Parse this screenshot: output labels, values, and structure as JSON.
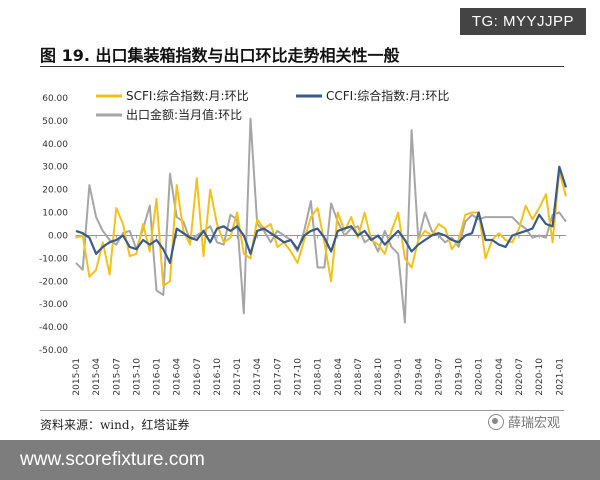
{
  "badge": {
    "text": "TG: MYYJJPP"
  },
  "figure": {
    "title": "图 19. 出口集装箱指数与出口环比走势相关性一般",
    "source": "资料来源：wind，红塔证券",
    "watermark_right": "薛瑞宏观"
  },
  "site": {
    "url": "www.scorefixture.com"
  },
  "colors": {
    "scfi": "#f2c21b",
    "ccfi": "#3a5a8c",
    "export": "#a6a6a6"
  },
  "chart_data": {
    "type": "line",
    "ylim": [
      -50,
      60
    ],
    "yticks": [
      -50,
      -40,
      -30,
      -20,
      -10,
      0,
      10,
      20,
      30,
      40,
      50,
      60
    ],
    "ytick_labels": [
      "-50.00",
      "-40.00",
      "-30.00",
      "-20.00",
      "-10.00",
      "0.00",
      "10.00",
      "20.00",
      "30.00",
      "40.00",
      "50.00",
      "60.00"
    ],
    "x": [
      "2015-01",
      "2015-02",
      "2015-03",
      "2015-04",
      "2015-05",
      "2015-06",
      "2015-07",
      "2015-08",
      "2015-09",
      "2015-10",
      "2015-11",
      "2015-12",
      "2016-01",
      "2016-02",
      "2016-03",
      "2016-04",
      "2016-05",
      "2016-06",
      "2016-07",
      "2016-08",
      "2016-09",
      "2016-10",
      "2016-11",
      "2016-12",
      "2017-01",
      "2017-02",
      "2017-03",
      "2017-04",
      "2017-05",
      "2017-06",
      "2017-07",
      "2017-08",
      "2017-09",
      "2017-10",
      "2017-11",
      "2017-12",
      "2018-01",
      "2018-02",
      "2018-03",
      "2018-04",
      "2018-05",
      "2018-06",
      "2018-07",
      "2018-08",
      "2018-09",
      "2018-10",
      "2018-11",
      "2018-12",
      "2019-01",
      "2019-02",
      "2019-03",
      "2019-04",
      "2019-05",
      "2019-06",
      "2019-07",
      "2019-08",
      "2019-09",
      "2019-10",
      "2019-11",
      "2019-12",
      "2020-01",
      "2020-02",
      "2020-03",
      "2020-04",
      "2020-05",
      "2020-06",
      "2020-07",
      "2020-08",
      "2020-09",
      "2020-10",
      "2020-11",
      "2020-12",
      "2021-01",
      "2021-02"
    ],
    "xtick_labels": [
      "2015-01",
      "2015-04",
      "2015-07",
      "2015-10",
      "2016-01",
      "2016-04",
      "2016-07",
      "2016-10",
      "2017-01",
      "2017-04",
      "2017-07",
      "2017-10",
      "2018-01",
      "2018-04",
      "2018-07",
      "2018-10",
      "2019-01",
      "2019-04",
      "2019-07",
      "2019-10",
      "2020-01",
      "2020-04",
      "2020-07",
      "2020-10",
      "2021-01"
    ],
    "legend_placement": "top",
    "series": [
      {
        "name": "SCFI:综合指数:月:环比",
        "color_key": "scfi",
        "values": [
          -1,
          0,
          -18,
          -15,
          -3,
          -17,
          12,
          5,
          -9,
          -8,
          5,
          -7,
          16,
          -22,
          -20,
          22,
          2,
          -4,
          25,
          -9,
          20,
          5,
          -3,
          -1,
          10,
          -8,
          -10,
          7,
          3,
          5,
          -5,
          -3,
          -7,
          -12,
          -2,
          8,
          12,
          -3,
          -20,
          10,
          2,
          8,
          -1,
          10,
          -2,
          -4,
          -8,
          2,
          10,
          -10,
          -14,
          -2,
          2,
          0,
          5,
          3,
          -6,
          -2,
          9,
          10,
          10,
          -10,
          -2,
          1,
          -2,
          -3,
          3,
          13,
          7,
          12,
          18,
          -3,
          28,
          17
        ]
      },
      {
        "name": "CCFI:综合指数:月:环比",
        "color_key": "ccfi",
        "values": [
          2,
          1,
          -1,
          -8,
          -5,
          -3,
          -2,
          0,
          -5,
          -6,
          -2,
          -4,
          -2,
          -6,
          -12,
          3,
          1,
          -1,
          -2,
          2,
          -3,
          3,
          4,
          2,
          4,
          0,
          -8,
          2,
          3,
          1,
          -1,
          -3,
          -2,
          -6,
          0,
          2,
          3,
          -1,
          -7,
          2,
          3,
          4,
          0,
          2,
          -2,
          0,
          -4,
          -1,
          2,
          -2,
          -7,
          -4,
          -2,
          0,
          1,
          0,
          -2,
          -3,
          0,
          1,
          10,
          -2,
          -2,
          -4,
          -5,
          0,
          1,
          2,
          3,
          9,
          5,
          4,
          30,
          21
        ]
      },
      {
        "name": "出口金额:当月值:环比",
        "color_key": "export",
        "values": [
          -12,
          -15,
          22,
          8,
          2,
          -2,
          -4,
          1,
          2,
          -6,
          3,
          13,
          -24,
          -26,
          27,
          8,
          6,
          -2,
          0,
          2,
          4,
          -3,
          -4,
          9,
          7,
          -34,
          51,
          5,
          2,
          -3,
          2,
          0,
          -2,
          -7,
          2,
          15,
          -14,
          -14,
          14,
          6,
          0,
          3,
          4,
          -3,
          -1,
          -7,
          2,
          -5,
          -8,
          -38,
          46,
          -2,
          10,
          2,
          0,
          -3,
          -1,
          -5,
          6,
          9,
          7,
          8,
          8,
          8,
          8,
          8,
          5,
          3,
          -1,
          0,
          -1,
          9,
          10,
          6
        ]
      }
    ]
  }
}
